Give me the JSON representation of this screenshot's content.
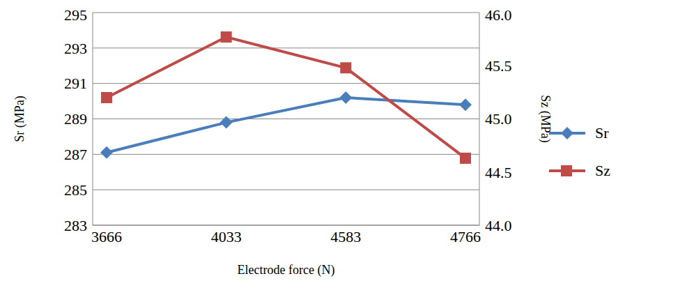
{
  "chart_data": {
    "type": "line",
    "x_label": "Electrode force (N)",
    "y_label": "Sr (MPa)",
    "y2_label": "Sz (MPa)",
    "categories": [
      "3666",
      "4033",
      "4583",
      "4766"
    ],
    "ylim": [
      283,
      295
    ],
    "yticks": [
      283,
      285,
      287,
      289,
      291,
      293,
      295
    ],
    "y2lim": [
      44,
      46
    ],
    "y2ticks": [
      {
        "value": 44,
        "label": "44.0"
      },
      44.5,
      {
        "value": 45,
        "label": "45.0"
      },
      45.5,
      {
        "value": 46,
        "label": "46.0"
      }
    ],
    "grid": true,
    "legend": "right",
    "series": [
      {
        "name": "Sr",
        "color": "#4a7ebb",
        "marker": "diamond",
        "values": [
          287.1,
          288.8,
          290.2,
          289.8
        ]
      },
      {
        "name": "Sz",
        "color": "#be4b48",
        "marker": "square",
        "axis": "y2",
        "values": [
          45.2,
          45.77,
          45.48,
          44.63
        ]
      }
    ]
  }
}
